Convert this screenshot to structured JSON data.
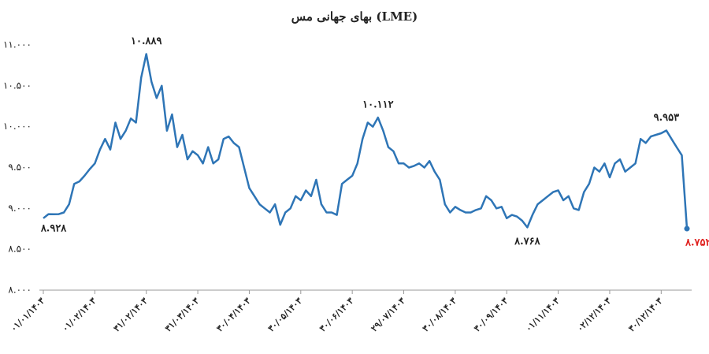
{
  "chart_data": {
    "type": "line",
    "title": "بهای جهانی مس (LME)",
    "categories": [
      "۰۱/۰۱/۱۴۰۳",
      null,
      null,
      null,
      null,
      null,
      null,
      null,
      null,
      null,
      "۰۱/۰۲/۱۴۰۳",
      null,
      null,
      null,
      null,
      null,
      null,
      null,
      null,
      null,
      "۳۱/۰۲/۱۴۰۳",
      null,
      null,
      null,
      null,
      null,
      null,
      null,
      null,
      null,
      "۳۱/۰۳/۱۴۰۳",
      null,
      null,
      null,
      null,
      null,
      null,
      null,
      null,
      null,
      "۳۰/۰۴/۱۴۰۳",
      null,
      null,
      null,
      null,
      null,
      null,
      null,
      null,
      null,
      "۳۰/۰۵/۱۴۰۳",
      null,
      null,
      null,
      null,
      null,
      null,
      null,
      null,
      null,
      "۳۰/۰۶/۱۴۰۳",
      null,
      null,
      null,
      null,
      null,
      null,
      null,
      null,
      null,
      "۲۹/۰۷/۱۴۰۳",
      null,
      null,
      null,
      null,
      null,
      null,
      null,
      null,
      null,
      "۳۰/۰۸/۱۴۰۳",
      null,
      null,
      null,
      null,
      null,
      null,
      null,
      null,
      null,
      "۳۰/۰۹/۱۴۰۳",
      null,
      null,
      null,
      null,
      null,
      null,
      null,
      null,
      null,
      "۰۱/۱۱/۱۴۰۳",
      null,
      null,
      null,
      null,
      null,
      null,
      null,
      null,
      null,
      "۰۲/۱۲/۱۴۰۳",
      null,
      null,
      null,
      null,
      null,
      null,
      null,
      null,
      null,
      "۳۰/۱۲/۱۴۰۳",
      null,
      null,
      null,
      null,
      null
    ],
    "values": [
      8880,
      8930,
      8928,
      8930,
      8950,
      9050,
      9300,
      9330,
      9400,
      9480,
      9550,
      9720,
      9850,
      9720,
      10050,
      9850,
      9950,
      10100,
      10050,
      10600,
      10889,
      10550,
      10350,
      10500,
      9950,
      10150,
      9750,
      9900,
      9600,
      9700,
      9650,
      9550,
      9750,
      9550,
      9600,
      9850,
      9880,
      9800,
      9750,
      9500,
      9250,
      9150,
      9050,
      9000,
      8950,
      9050,
      8800,
      8950,
      9000,
      9150,
      9100,
      9220,
      9150,
      9350,
      9050,
      8950,
      8950,
      8920,
      9300,
      9350,
      9400,
      9550,
      9850,
      10050,
      10000,
      10112,
      9950,
      9750,
      9700,
      9550,
      9550,
      9500,
      9520,
      9550,
      9500,
      9580,
      9450,
      9350,
      9050,
      8950,
      9020,
      8980,
      8950,
      8950,
      8980,
      9000,
      9150,
      9100,
      9000,
      9020,
      8880,
      8920,
      8900,
      8850,
      8768,
      8920,
      9050,
      9100,
      9150,
      9200,
      9220,
      9100,
      9150,
      9000,
      8980,
      9200,
      9300,
      9500,
      9450,
      9550,
      9380,
      9550,
      9600,
      9450,
      9500,
      9550,
      9850,
      9800,
      9880,
      9900,
      9920,
      9953,
      9850,
      9750,
      9650,
      8752
    ],
    "value_labels": [
      null,
      null,
      "۸.۹۲۸",
      null,
      null,
      null,
      null,
      null,
      null,
      null,
      null,
      null,
      null,
      null,
      null,
      null,
      null,
      null,
      null,
      null,
      "۱۰.۸۸۹",
      null,
      null,
      null,
      null,
      null,
      null,
      null,
      null,
      null,
      null,
      null,
      null,
      null,
      null,
      null,
      null,
      null,
      null,
      null,
      null,
      null,
      null,
      null,
      null,
      null,
      null,
      null,
      null,
      null,
      null,
      null,
      null,
      null,
      null,
      null,
      null,
      null,
      null,
      null,
      null,
      null,
      null,
      null,
      null,
      "۱۰.۱۱۲",
      null,
      null,
      null,
      null,
      null,
      null,
      null,
      null,
      null,
      null,
      null,
      null,
      null,
      null,
      null,
      null,
      null,
      null,
      null,
      null,
      null,
      null,
      null,
      null,
      null,
      null,
      null,
      null,
      "۸.۷۶۸",
      null,
      null,
      null,
      null,
      null,
      null,
      null,
      null,
      null,
      null,
      null,
      null,
      null,
      null,
      null,
      null,
      null,
      null,
      null,
      null,
      null,
      null,
      null,
      null,
      null,
      null,
      "۹.۹۵۳",
      null,
      null,
      null,
      "۸.۷۵۲"
    ],
    "color": "#2e75b6",
    "last_label_color": "#e0201e",
    "ylim": [
      8000,
      11000
    ],
    "yticks": [
      {
        "value": 8000,
        "label": "۸.۰۰۰"
      },
      {
        "value": 8500,
        "label": "۸.۵۰۰"
      },
      {
        "value": 9000,
        "label": "۹.۰۰۰"
      },
      {
        "value": 9500,
        "label": "۹.۵۰۰"
      },
      {
        "value": 10000,
        "label": "۱۰.۰۰۰"
      },
      {
        "value": 10500,
        "label": "۱۰.۵۰۰"
      },
      {
        "value": 11000,
        "label": "۱۱.۰۰۰"
      }
    ],
    "grid": false
  }
}
